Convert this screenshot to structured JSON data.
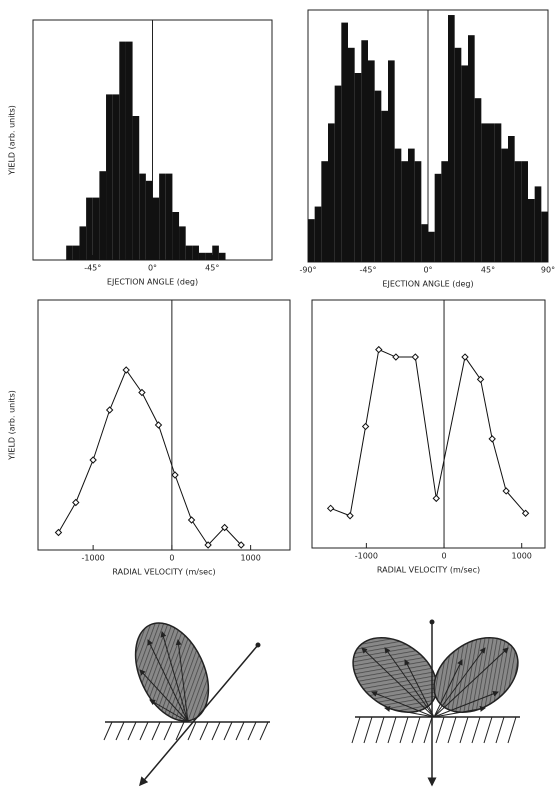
{
  "chart_data": [
    {
      "type": "histogram",
      "ylabel": "YIELD (arb. units)",
      "xlabel": "EJECTION ANGLE (deg)",
      "bins": [
        -65,
        -60,
        -55,
        -50,
        -45,
        -40,
        -35,
        -30,
        -25,
        -20,
        -15,
        -10,
        -5,
        0,
        5,
        10,
        15,
        20,
        25,
        30,
        35,
        40,
        45,
        50,
        55
      ],
      "values": [
        6,
        6,
        14,
        26,
        26,
        37,
        69,
        69,
        91,
        91,
        60,
        36,
        33,
        26,
        36,
        36,
        20,
        14,
        6,
        6,
        3,
        3,
        6,
        3
      ],
      "color": "#111111",
      "xlim": [
        -90,
        90
      ],
      "ylim": [
        0,
        100
      ],
      "xticks": [
        {
          "value": -45,
          "label": "-45°"
        },
        {
          "value": 0,
          "label": "0°"
        },
        {
          "value": 45,
          "label": "45°"
        }
      ]
    },
    {
      "type": "histogram",
      "xlabel": "EJECTION ANGLE (deg)",
      "bins": [
        -90,
        -85,
        -80,
        -75,
        -70,
        -65,
        -60,
        -55,
        -50,
        -45,
        -40,
        -35,
        -30,
        -25,
        -20,
        -15,
        -10,
        -5,
        0,
        5,
        10,
        15,
        20,
        25,
        30,
        35,
        40,
        45,
        50,
        55,
        60,
        65,
        70,
        75,
        80,
        85,
        90
      ],
      "values": [
        17,
        22,
        40,
        55,
        70,
        95,
        85,
        75,
        88,
        80,
        68,
        60,
        80,
        45,
        40,
        45,
        40,
        15,
        12,
        35,
        40,
        98,
        85,
        78,
        90,
        65,
        55,
        55,
        55,
        45,
        50,
        40,
        40,
        25,
        30,
        20
      ],
      "color": "#111111",
      "xlim": [
        -90,
        90
      ],
      "ylim": [
        0,
        100
      ],
      "xticks": [
        {
          "value": -90,
          "label": "-90°"
        },
        {
          "value": -45,
          "label": "-45°"
        },
        {
          "value": 0,
          "label": "0°"
        },
        {
          "value": 45,
          "label": "45°"
        },
        {
          "value": 90,
          "label": "90°"
        }
      ]
    },
    {
      "type": "line",
      "ylabel": "YIELD (arb. units)",
      "xlabel": "RADIAL VELOCITY (m/sec)",
      "x": [
        -1440,
        -1220,
        -1000,
        -790,
        -580,
        -380,
        -170,
        40,
        250,
        460,
        670,
        880
      ],
      "values": [
        7,
        19,
        36,
        56,
        72,
        63,
        50,
        30,
        12,
        2,
        9,
        2
      ],
      "color": "#111111",
      "xlim": [
        -1700,
        1500
      ],
      "ylim": [
        0,
        100
      ],
      "xticks": [
        -1000,
        0,
        1000
      ]
    },
    {
      "type": "line",
      "xlabel": "RADIAL VELOCITY (m/sec)",
      "x": [
        -1460,
        -1210,
        -1010,
        -840,
        -620,
        -370,
        -100,
        270,
        470,
        620,
        800,
        1050
      ],
      "values": [
        16,
        13,
        49,
        80,
        77,
        77,
        20,
        77,
        68,
        44,
        23,
        14
      ],
      "color": "#111111",
      "xlim": [
        -1700,
        1300
      ],
      "ylim": [
        0,
        100
      ],
      "xticks": [
        -1000,
        0,
        1000
      ]
    }
  ]
}
